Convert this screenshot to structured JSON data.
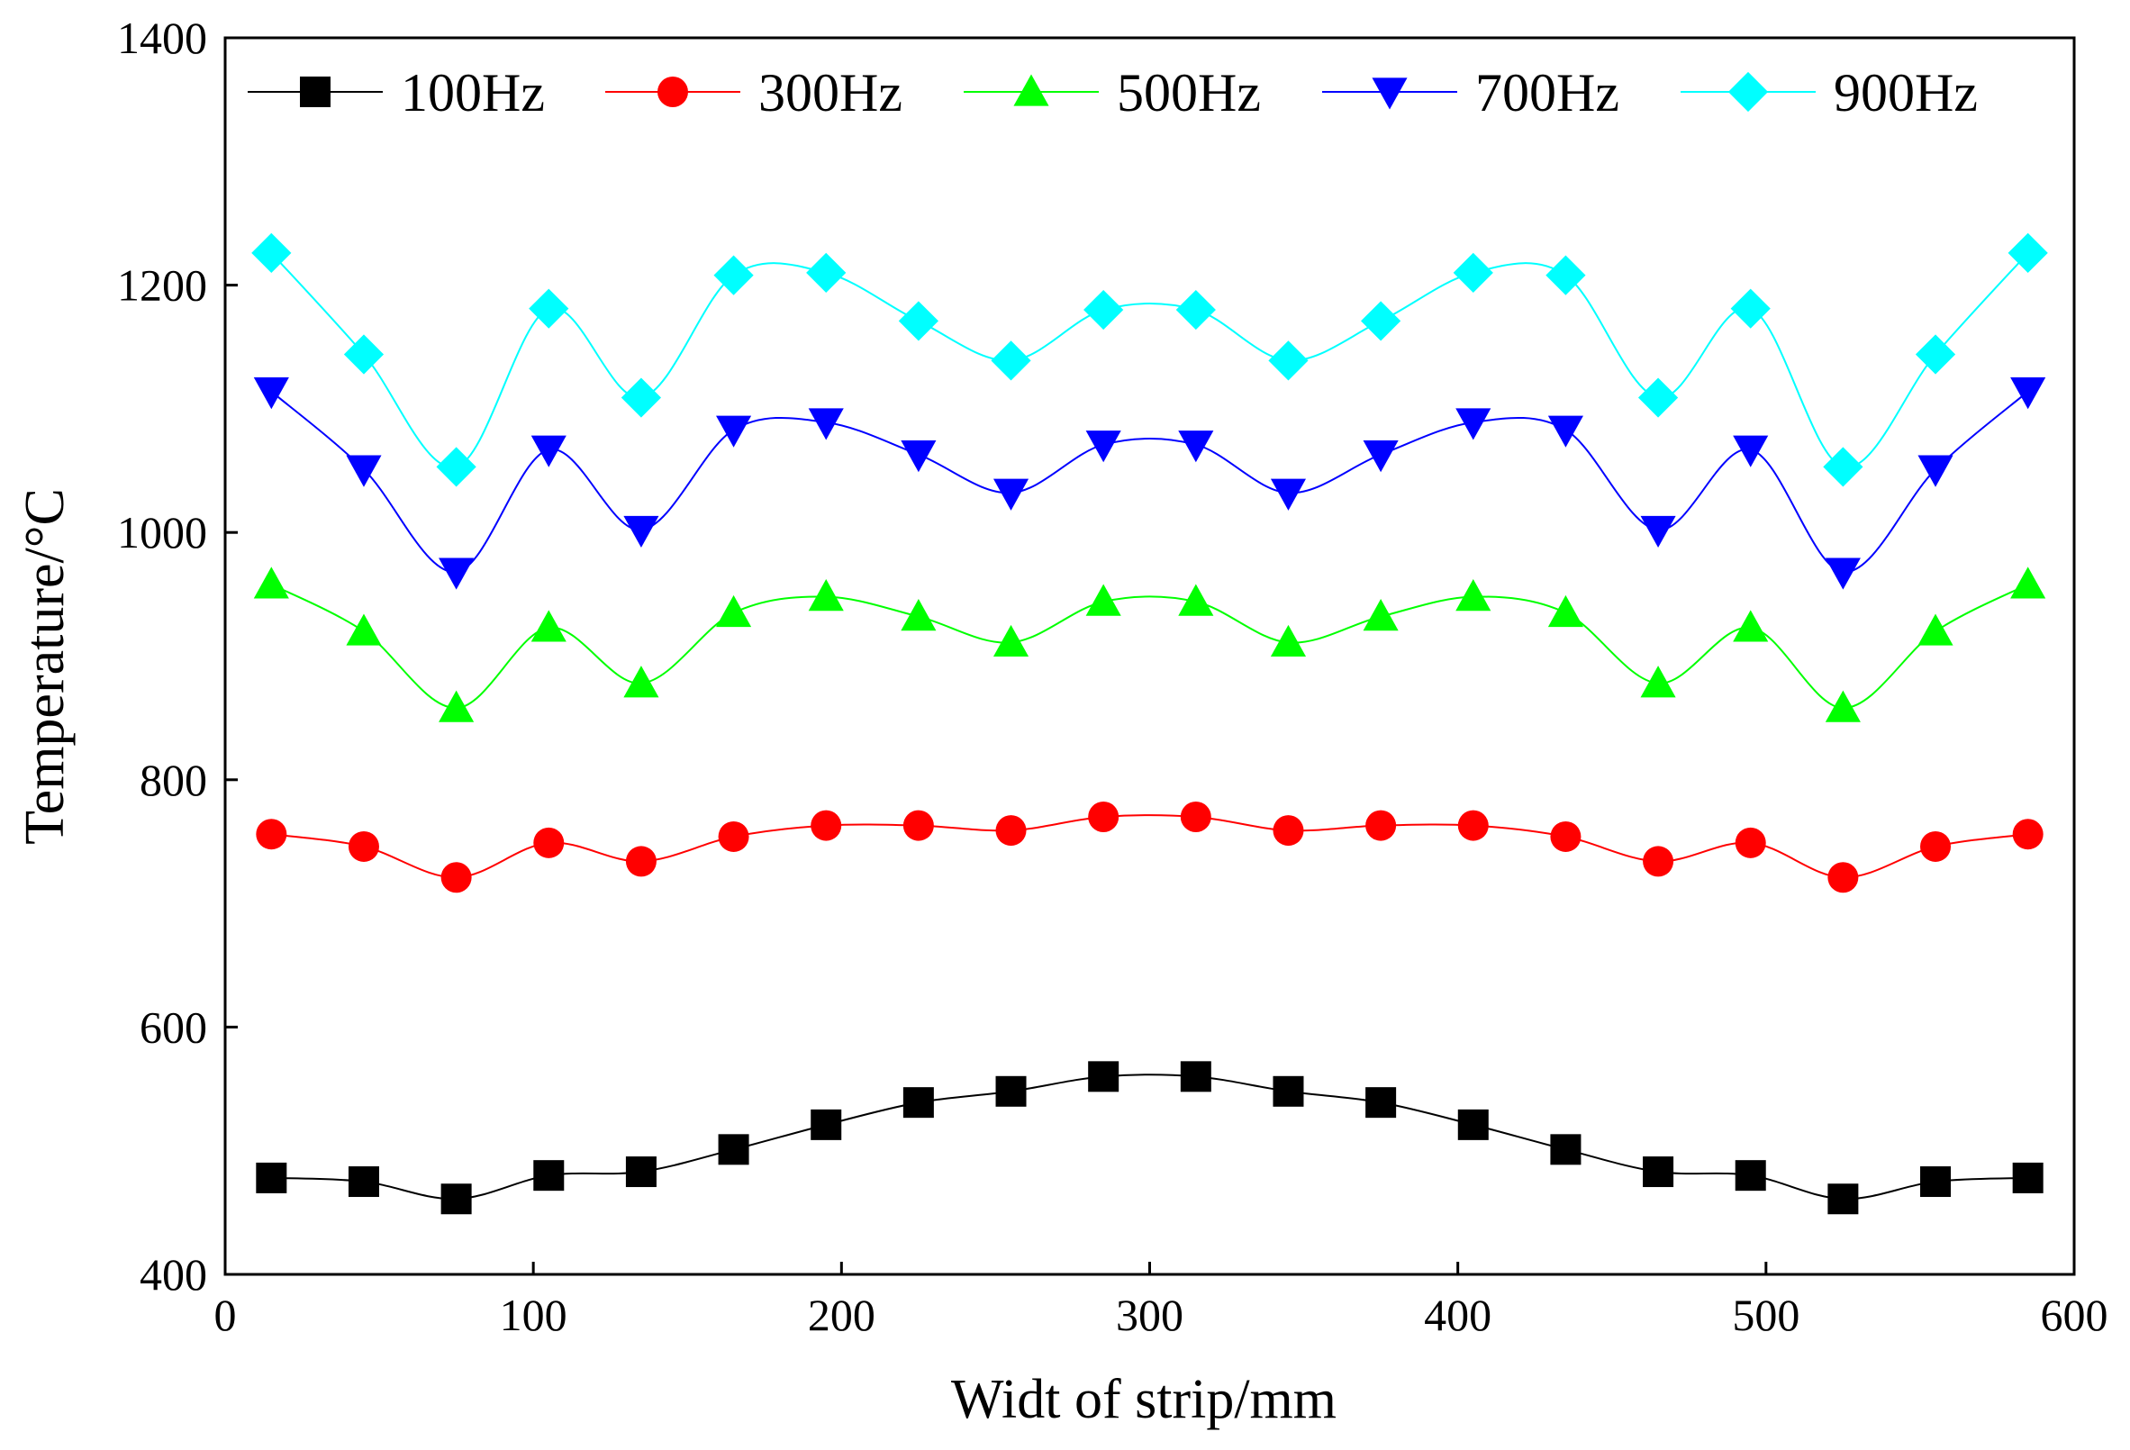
{
  "chart_data": {
    "type": "line",
    "xlabel": "Widt of strip/mm",
    "ylabel": "Temperature/°C",
    "xlim": [
      0,
      600
    ],
    "ylim": [
      400,
      1400
    ],
    "xticks": [
      0,
      100,
      200,
      300,
      400,
      500,
      600
    ],
    "yticks": [
      400,
      600,
      800,
      1000,
      1200,
      1400
    ],
    "grid": false,
    "legend_position": "top",
    "x": [
      15,
      45,
      75,
      105,
      135,
      165,
      195,
      225,
      255,
      285,
      315,
      345,
      375,
      405,
      435,
      465,
      495,
      525,
      555,
      585
    ],
    "series": [
      {
        "name": "100Hz",
        "color": "#000000",
        "marker": "square",
        "values": [
          478,
          475,
          461,
          480,
          483,
          501,
          521,
          539,
          548,
          560,
          560,
          548,
          539,
          521,
          501,
          483,
          480,
          461,
          475,
          478
        ]
      },
      {
        "name": "300Hz",
        "color": "#ff0000",
        "marker": "circle",
        "values": [
          756,
          746,
          721,
          749,
          734,
          754,
          763,
          763,
          759,
          770,
          770,
          759,
          763,
          763,
          754,
          734,
          749,
          721,
          746,
          756
        ]
      },
      {
        "name": "500Hz",
        "color": "#00ff00",
        "marker": "triangle-up",
        "values": [
          958,
          920,
          858,
          923,
          878,
          935,
          948,
          932,
          911,
          944,
          944,
          911,
          932,
          948,
          935,
          878,
          923,
          858,
          920,
          958
        ]
      },
      {
        "name": "700Hz",
        "color": "#0000ff",
        "marker": "triangle-down",
        "values": [
          1114,
          1051,
          968,
          1067,
          1002,
          1083,
          1089,
          1063,
          1032,
          1071,
          1071,
          1032,
          1063,
          1089,
          1083,
          1002,
          1067,
          968,
          1051,
          1114
        ]
      },
      {
        "name": "900Hz",
        "color": "#00ffff",
        "marker": "diamond",
        "values": [
          1226,
          1144,
          1053,
          1181,
          1109,
          1208,
          1210,
          1171,
          1139,
          1180,
          1180,
          1139,
          1171,
          1210,
          1208,
          1109,
          1181,
          1053,
          1144,
          1226
        ]
      }
    ]
  }
}
